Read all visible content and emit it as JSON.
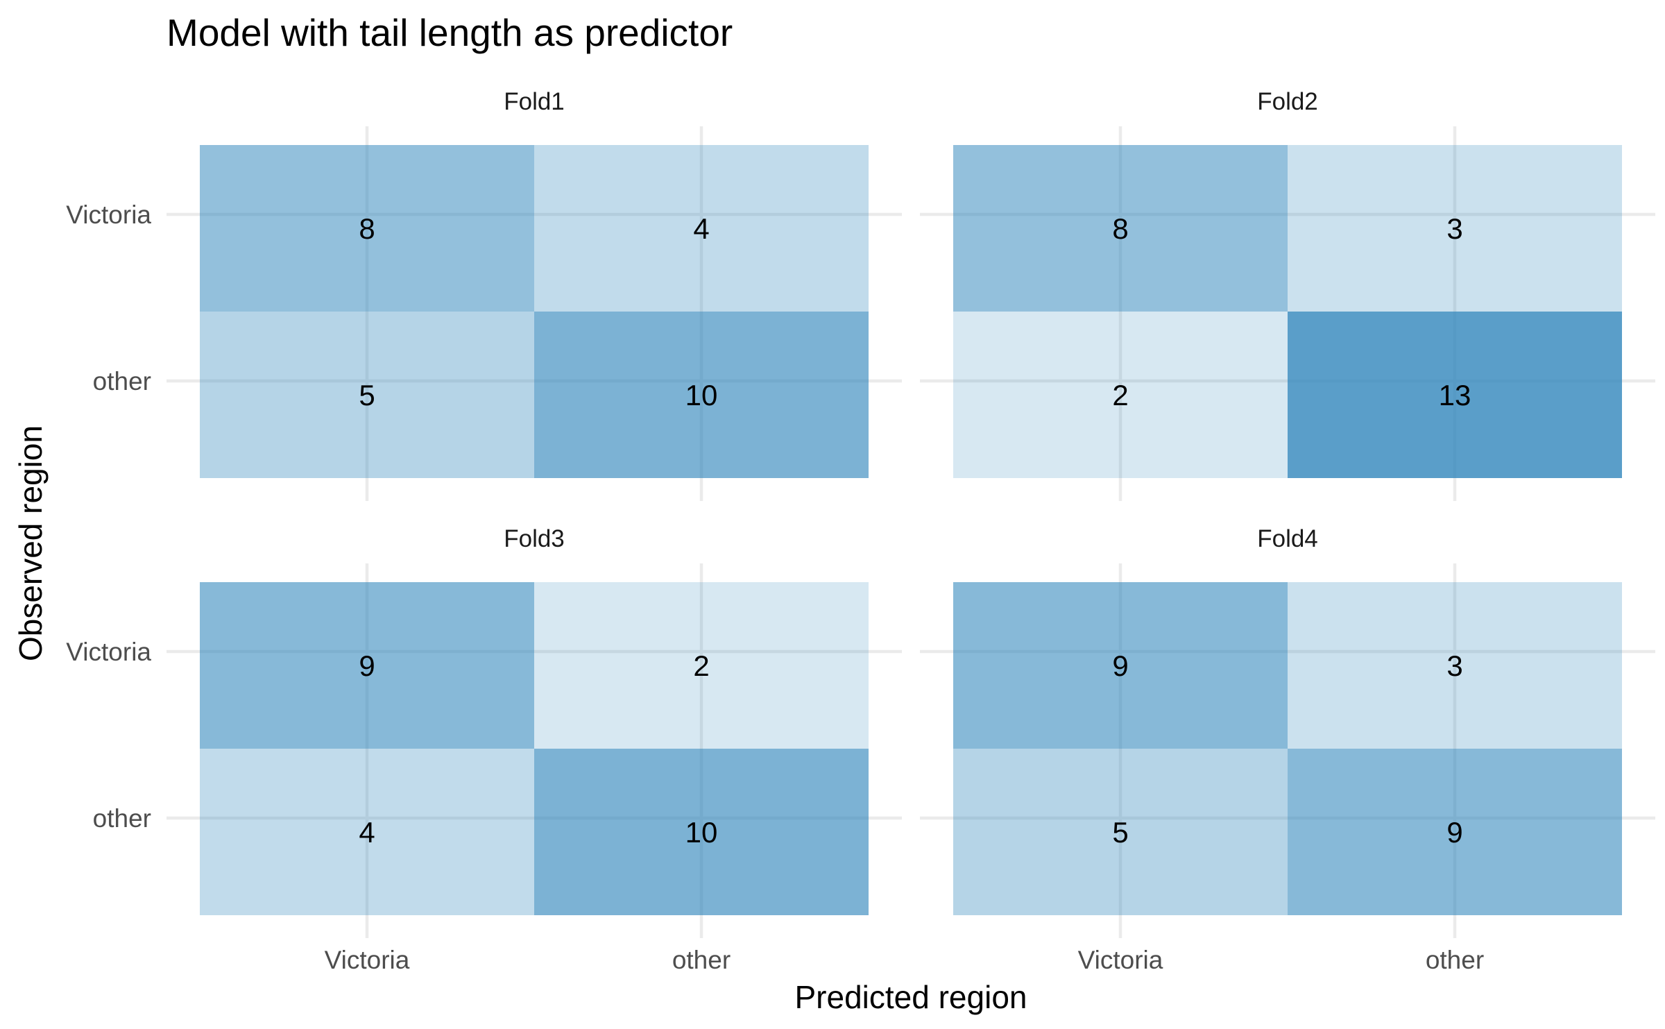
{
  "chart_data": {
    "type": "heatmap",
    "title": "Model with tail length as predictor",
    "xlabel": "Predicted region",
    "ylabel": "Observed region",
    "x_categories": [
      "Victoria",
      "other"
    ],
    "y_categories": [
      "Victoria",
      "other"
    ],
    "fill_color": "#2b83ba",
    "facets": [
      {
        "name": "Fold1",
        "cells": [
          {
            "observed": "Victoria",
            "predicted": "Victoria",
            "value": 8
          },
          {
            "observed": "Victoria",
            "predicted": "other",
            "value": 4
          },
          {
            "observed": "other",
            "predicted": "Victoria",
            "value": 5
          },
          {
            "observed": "other",
            "predicted": "other",
            "value": 10
          }
        ]
      },
      {
        "name": "Fold2",
        "cells": [
          {
            "observed": "Victoria",
            "predicted": "Victoria",
            "value": 8
          },
          {
            "observed": "Victoria",
            "predicted": "other",
            "value": 3
          },
          {
            "observed": "other",
            "predicted": "Victoria",
            "value": 2
          },
          {
            "observed": "other",
            "predicted": "other",
            "value": 13
          }
        ]
      },
      {
        "name": "Fold3",
        "cells": [
          {
            "observed": "Victoria",
            "predicted": "Victoria",
            "value": 9
          },
          {
            "observed": "Victoria",
            "predicted": "other",
            "value": 2
          },
          {
            "observed": "other",
            "predicted": "Victoria",
            "value": 4
          },
          {
            "observed": "other",
            "predicted": "other",
            "value": 10
          }
        ]
      },
      {
        "name": "Fold4",
        "cells": [
          {
            "observed": "Victoria",
            "predicted": "Victoria",
            "value": 9
          },
          {
            "observed": "Victoria",
            "predicted": "other",
            "value": 3
          },
          {
            "observed": "other",
            "predicted": "Victoria",
            "value": 5
          },
          {
            "observed": "other",
            "predicted": "other",
            "value": 9
          }
        ]
      }
    ]
  }
}
